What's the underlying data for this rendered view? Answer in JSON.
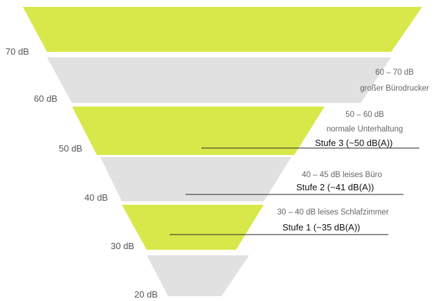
{
  "colors": {
    "green": "#d8e84a",
    "gray": "#e1e1e1",
    "line": "#222222"
  },
  "bands": [
    {
      "color": "green"
    },
    {
      "color": "gray"
    },
    {
      "color": "green"
    },
    {
      "color": "gray"
    },
    {
      "color": "green"
    },
    {
      "color": "gray"
    }
  ],
  "levels": [
    "70 dB",
    "60 dB",
    "50 dB",
    "40 dB",
    "30 dB",
    "20 dB"
  ],
  "descriptions": {
    "d60_range": "60 – 70 dB",
    "d60_text": "großer Bürodrucker",
    "d50_range": "50 – 60 dB",
    "d50_text": "normale Unterhaltung",
    "d40": "40 – 45 dB leises Büro",
    "d30": "30 – 40 dB leises Schlafzimmer"
  },
  "stufen": {
    "s3": "Stufe 3 (~50 dB(A))",
    "s2": "Stufe 2 (~41 dB(A))",
    "s1": "Stufe 1 (~35 dB(A))"
  }
}
